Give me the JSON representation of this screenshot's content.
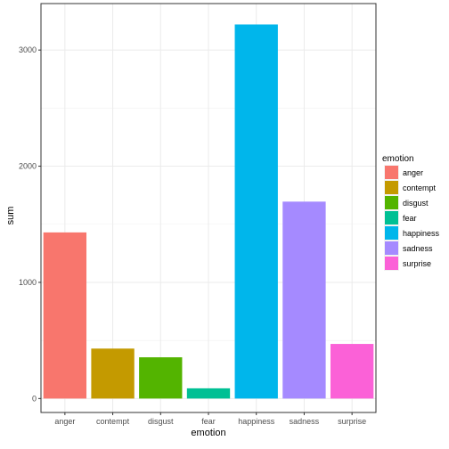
{
  "chart_data": {
    "type": "bar",
    "xlabel": "emotion",
    "ylabel": "sum",
    "categories": [
      "anger",
      "contempt",
      "disgust",
      "fear",
      "happiness",
      "sadness",
      "surprise"
    ],
    "values": [
      1430,
      430,
      355,
      88,
      3220,
      1695,
      470
    ],
    "colors": [
      "#F8766D",
      "#C49A00",
      "#53B400",
      "#00C094",
      "#00B6EB",
      "#A58AFF",
      "#FB61D7"
    ],
    "ylim": [
      -120,
      3400
    ],
    "yticks": [
      0,
      1000,
      2000,
      3000
    ],
    "grid": true,
    "legend": {
      "title": "emotion",
      "placement": "right",
      "items": [
        "anger",
        "contempt",
        "disgust",
        "fear",
        "happiness",
        "sadness",
        "surprise"
      ]
    }
  }
}
